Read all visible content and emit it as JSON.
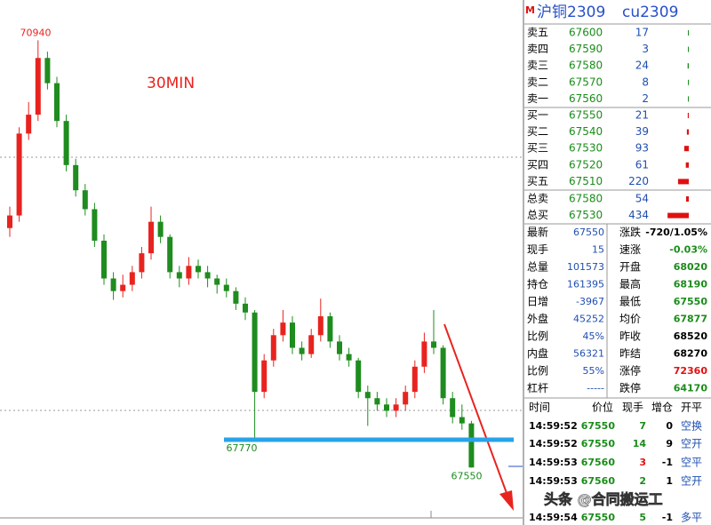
{
  "chart_data": {
    "type": "candlestick",
    "period": "30MIN",
    "ylim": [
      67150,
      71260
    ],
    "up_color": "#e8231f",
    "down_color": "#1e8c1e",
    "support_color": "#29a3e8",
    "ohlc": [
      [
        69450,
        69620,
        69380,
        69550
      ],
      [
        69550,
        70250,
        69500,
        70200
      ],
      [
        70200,
        70450,
        70150,
        70350
      ],
      [
        70350,
        70940,
        70300,
        70800
      ],
      [
        70800,
        70850,
        70550,
        70600
      ],
      [
        70600,
        70650,
        70250,
        70300
      ],
      [
        70300,
        70350,
        69900,
        69950
      ],
      [
        69950,
        70000,
        69700,
        69750
      ],
      [
        69750,
        69800,
        69550,
        69600
      ],
      [
        69600,
        69650,
        69300,
        69350
      ],
      [
        69350,
        69400,
        69000,
        69050
      ],
      [
        69050,
        69100,
        68880,
        68950
      ],
      [
        68950,
        69080,
        68900,
        69000
      ],
      [
        69000,
        69150,
        68950,
        69100
      ],
      [
        69100,
        69300,
        69050,
        69250
      ],
      [
        69250,
        69620,
        69200,
        69500
      ],
      [
        69500,
        69550,
        69330,
        69380
      ],
      [
        69380,
        69400,
        69050,
        69100
      ],
      [
        69100,
        69150,
        68980,
        69050
      ],
      [
        69050,
        69220,
        69000,
        69150
      ],
      [
        69150,
        69200,
        69050,
        69100
      ],
      [
        69100,
        69150,
        68980,
        69050
      ],
      [
        69050,
        69080,
        68930,
        69000
      ],
      [
        69000,
        69050,
        68900,
        68950
      ],
      [
        68950,
        68980,
        68800,
        68850
      ],
      [
        68850,
        68900,
        68720,
        68780
      ],
      [
        68780,
        68800,
        67770,
        68150
      ],
      [
        68150,
        68450,
        68100,
        68400
      ],
      [
        68400,
        68650,
        68350,
        68600
      ],
      [
        68600,
        68800,
        68550,
        68700
      ],
      [
        68700,
        68750,
        68450,
        68500
      ],
      [
        68500,
        68550,
        68400,
        68450
      ],
      [
        68450,
        68650,
        68420,
        68600
      ],
      [
        68600,
        68890,
        68550,
        68750
      ],
      [
        68750,
        68780,
        68500,
        68550
      ],
      [
        68550,
        68600,
        68400,
        68450
      ],
      [
        68450,
        68500,
        68350,
        68400
      ],
      [
        68400,
        68420,
        68100,
        68150
      ],
      [
        68150,
        68200,
        67880,
        68100
      ],
      [
        68100,
        68150,
        68000,
        68050
      ],
      [
        68050,
        68100,
        67950,
        68000
      ],
      [
        68000,
        68100,
        67950,
        68050
      ],
      [
        68050,
        68200,
        68000,
        68150
      ],
      [
        68150,
        68400,
        68100,
        68350
      ],
      [
        68350,
        68620,
        68300,
        68550
      ],
      [
        68550,
        68800,
        68450,
        68500
      ],
      [
        68500,
        68520,
        68050,
        68100
      ],
      [
        68100,
        68150,
        67900,
        67950
      ],
      [
        67950,
        68050,
        67850,
        67900
      ],
      [
        67900,
        67920,
        67550,
        67550
      ]
    ],
    "annotations": [
      70940,
      67770,
      67550
    ]
  },
  "quote": {
    "marker": "M",
    "name": "沪铜2309",
    "code": "cu2309"
  },
  "order_book": {
    "asks": [
      {
        "label": "卖五",
        "price": 67600,
        "volume": 17
      },
      {
        "label": "卖四",
        "price": 67590,
        "volume": 3
      },
      {
        "label": "卖三",
        "price": 67580,
        "volume": 24
      },
      {
        "label": "卖二",
        "price": 67570,
        "volume": 8
      },
      {
        "label": "卖一",
        "price": 67560,
        "volume": 2
      }
    ],
    "bids": [
      {
        "label": "买一",
        "price": 67550,
        "volume": 21
      },
      {
        "label": "买二",
        "price": 67540,
        "volume": 39
      },
      {
        "label": "买三",
        "price": 67530,
        "volume": 93
      },
      {
        "label": "买四",
        "price": 67520,
        "volume": 61
      },
      {
        "label": "买五",
        "price": 67510,
        "volume": 220
      }
    ],
    "totals": [
      {
        "label": "总卖",
        "price": 67580,
        "volume": 54
      },
      {
        "label": "总买",
        "price": 67530,
        "volume": 434
      }
    ]
  },
  "stats": {
    "rows": [
      [
        "最新",
        "67550",
        "涨跌",
        "-720/1.05%"
      ],
      [
        "现手",
        "15",
        "速涨",
        "-0.03%"
      ],
      [
        "总量",
        "101573",
        "开盘",
        "68020"
      ],
      [
        "持仓",
        "161395",
        "最高",
        "68190"
      ],
      [
        "日增",
        "-3967",
        "最低",
        "67550"
      ],
      [
        "外盘",
        "45252",
        "均价",
        "67877"
      ],
      [
        "比例",
        "45%",
        "昨收",
        "68520"
      ],
      [
        "内盘",
        "56321",
        "昨结",
        "68270"
      ],
      [
        "比例",
        "55%",
        "涨停",
        "72360"
      ],
      [
        "杠杆",
        "-----",
        "跌停",
        "64170"
      ]
    ],
    "right_colors": [
      "#000",
      "#1a8c1a",
      "#1a8c1a",
      "#1a8c1a",
      "#1a8c1a",
      "#1a8c1a",
      "#000",
      "#000",
      "#e01010",
      "#1a8c1a"
    ]
  },
  "trades": {
    "header": [
      "时间",
      "价位",
      "现手",
      "增仓",
      "开平"
    ],
    "rows": [
      [
        "14:59:52",
        "67550",
        "7",
        "0",
        "空换"
      ],
      [
        "14:59:52",
        "67550",
        "14",
        "9",
        "空开"
      ],
      [
        "14:59:53",
        "67560",
        "3",
        "-1",
        "空平"
      ],
      [
        "14:59:53",
        "67560",
        "2",
        "1",
        "空开"
      ],
      [
        "14:59:54",
        "67550",
        "5",
        "-1",
        "多平"
      ]
    ],
    "volume_colors": [
      "#1a8c1a",
      "#1a8c1a",
      "#e01010",
      "#1a8c1a",
      "#1a8c1a"
    ],
    "watermark": "头条 @合同搬运工"
  }
}
